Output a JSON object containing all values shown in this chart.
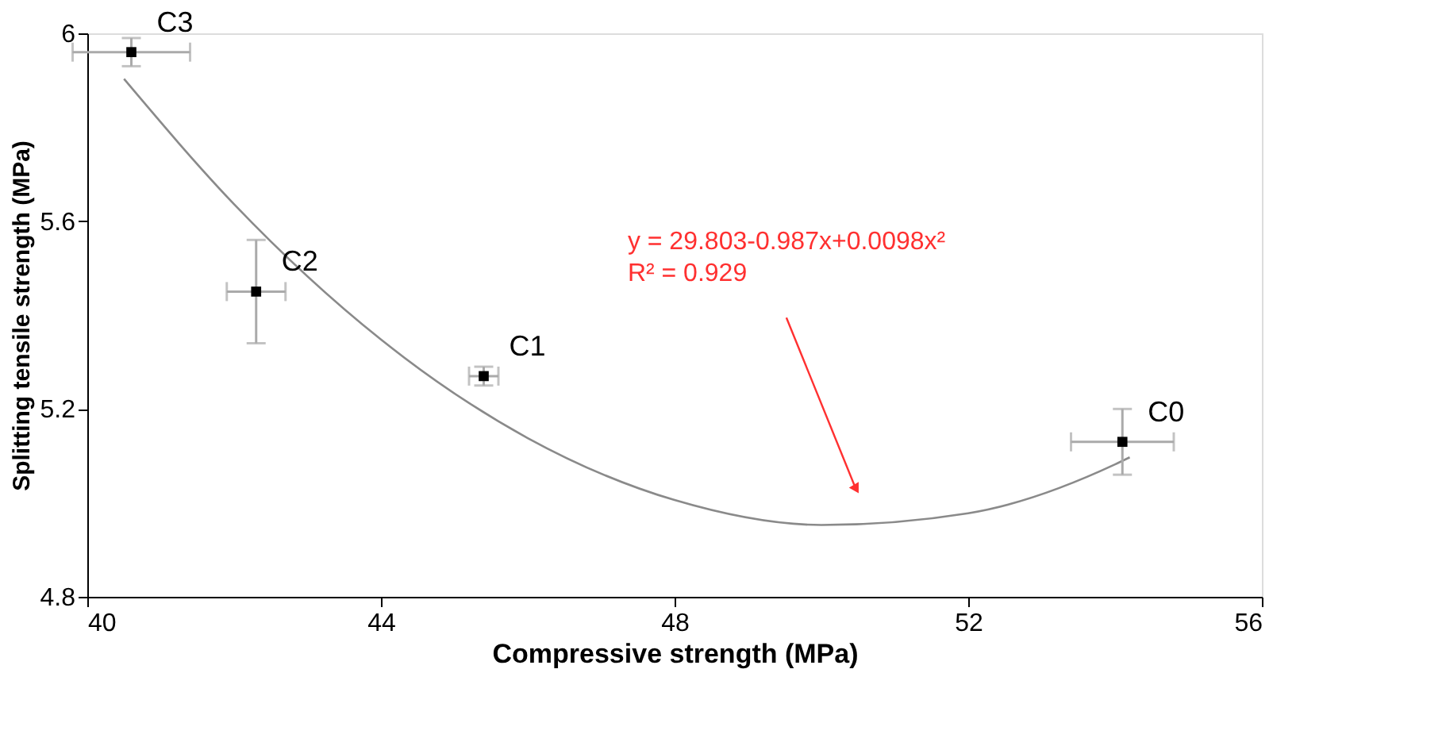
{
  "chart_data": {
    "type": "scatter",
    "xlabel": "Compressive strength (MPa)",
    "ylabel": "Splitting tensile strength (MPa)",
    "xlim": [
      40,
      56
    ],
    "xticks": [
      40,
      44,
      48,
      52,
      56
    ],
    "ylim": [
      4.8,
      6
    ],
    "yticks": [
      4.8,
      5.2,
      5.6,
      6
    ],
    "grid": false,
    "marker": "square",
    "series": [
      {
        "type": "line",
        "marker": "none",
        "color": "#8a8a8a",
        "x": [
          40.5,
          42,
          44,
          46,
          48,
          50,
          52,
          54,
          54.2
        ],
        "values": [
          5.903,
          5.636,
          5.348,
          5.138,
          5.006,
          4.953,
          4.978,
          5.082,
          5.097
        ]
      },
      {
        "color": "#000000",
        "x": [
          54.1,
          45.4,
          42.3,
          40.6
        ],
        "values": [
          5.13,
          5.27,
          5.45,
          5.96
        ],
        "xerrors": [
          0.7,
          0.2,
          0.4,
          0.8
        ],
        "errors": [
          0.07,
          0.02,
          0.11,
          0.03
        ],
        "value_labels": [
          "C0",
          "C1",
          "C2",
          "C3"
        ]
      }
    ],
    "annotations": [
      "y = 29.803-0.987x+0.0098x²",
      "R² = 0.929"
    ]
  }
}
